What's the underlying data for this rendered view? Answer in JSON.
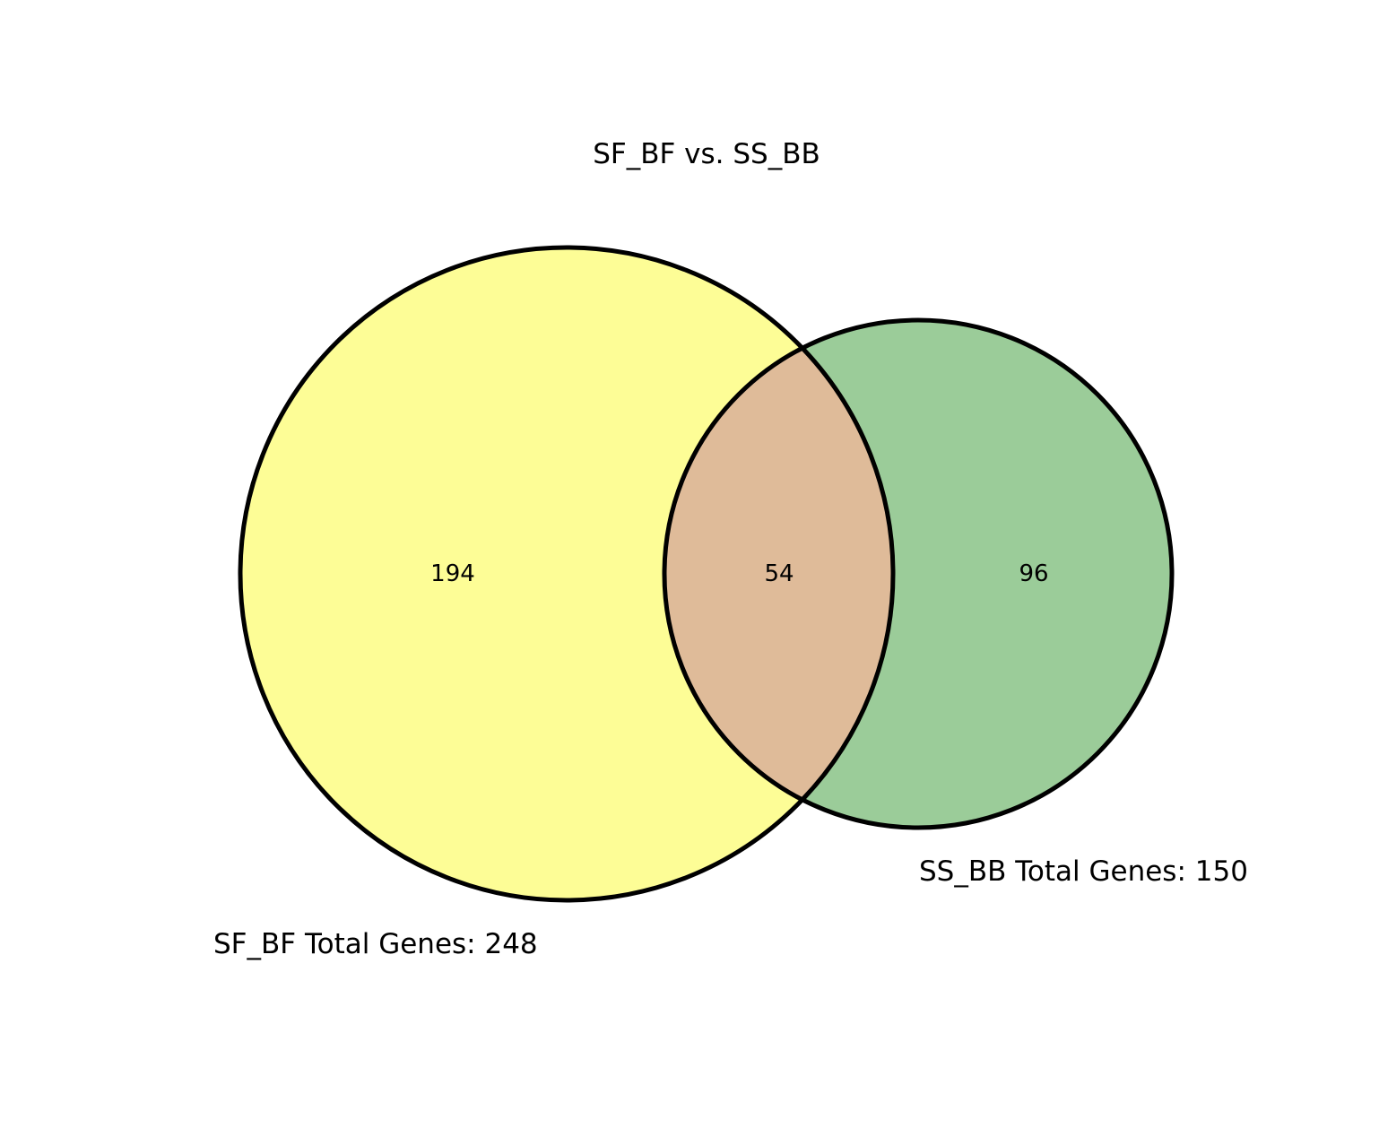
{
  "title": "SF_BF vs. SS_BB",
  "sets": [
    {
      "id": "sf_bf",
      "label": "SF_BF Total Genes: 248",
      "total": 248,
      "only_count": "194",
      "color": "#FDFD96"
    },
    {
      "id": "ss_bb",
      "label": "SS_BB Total Genes: 150",
      "total": 150,
      "only_count": "96",
      "color": "#9BCC99"
    }
  ],
  "intersection": {
    "count": "54",
    "color": "#DFBB99"
  },
  "outline_color": "#000000"
}
